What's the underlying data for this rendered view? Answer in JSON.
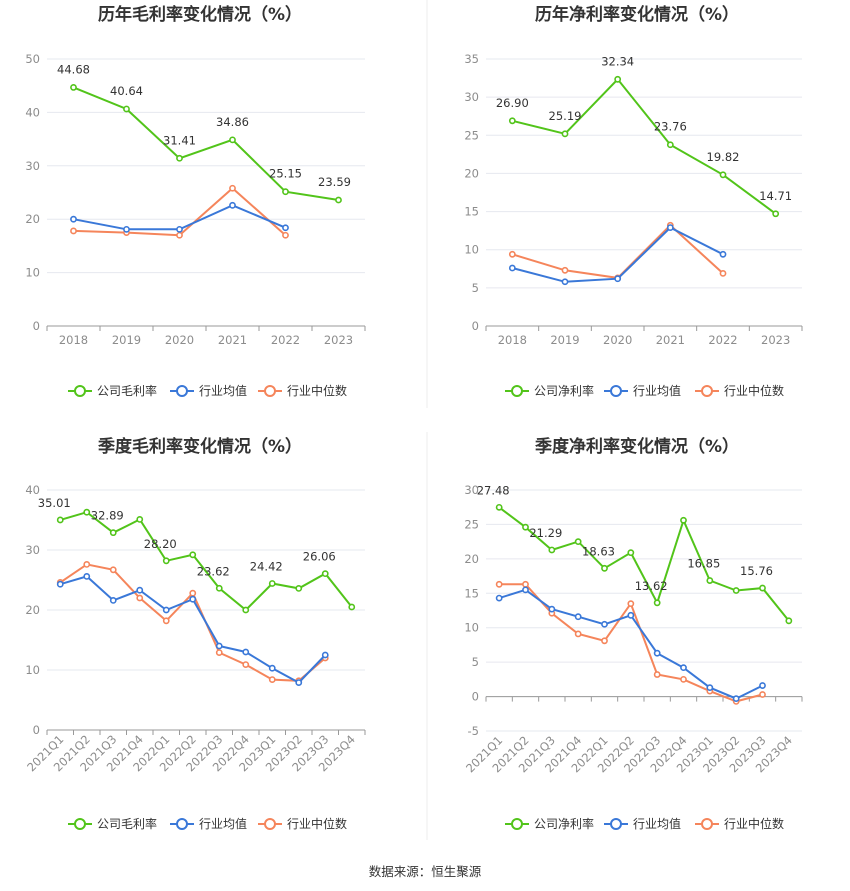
{
  "colors": {
    "company": "#52c41a",
    "industry_avg": "#3a78d8",
    "industry_median": "#f5855b",
    "grid": "#e6e8ef",
    "axis": "#999999"
  },
  "legend": {
    "company_gross": "公司毛利率",
    "company_net": "公司净利率",
    "industry_avg": "行业均值",
    "industry_median": "行业中位数"
  },
  "source": "数据来源：恒生聚源",
  "chart_data": [
    {
      "type": "line",
      "title": "历年毛利率变化情况（%）",
      "categories": [
        "2018",
        "2019",
        "2020",
        "2021",
        "2022",
        "2023"
      ],
      "ylim": [
        0,
        50
      ],
      "yticks": [
        0,
        10,
        20,
        30,
        40,
        50
      ],
      "legend_placement": "bottom",
      "series": [
        {
          "name": "公司毛利率",
          "values": [
            44.68,
            40.64,
            31.41,
            34.86,
            25.15,
            23.59
          ],
          "labels": [
            "44.68",
            "40.64",
            "31.41",
            "34.86",
            "25.15",
            "23.59"
          ]
        },
        {
          "name": "行业均值",
          "values": [
            20.0,
            18.1,
            18.1,
            22.6,
            18.4,
            null
          ]
        },
        {
          "name": "行业中位数",
          "values": [
            17.8,
            17.5,
            17.0,
            25.8,
            17.0,
            null
          ]
        }
      ]
    },
    {
      "type": "line",
      "title": "历年净利率变化情况（%）",
      "categories": [
        "2018",
        "2019",
        "2020",
        "2021",
        "2022",
        "2023"
      ],
      "ylim": [
        0,
        35
      ],
      "yticks": [
        0,
        5,
        10,
        15,
        20,
        25,
        30,
        35
      ],
      "legend_placement": "bottom",
      "series": [
        {
          "name": "公司净利率",
          "values": [
            26.9,
            25.19,
            32.34,
            23.76,
            19.82,
            14.71
          ],
          "labels": [
            "26.90",
            "25.19",
            "32.34",
            "23.76",
            "19.82",
            "14.71"
          ]
        },
        {
          "name": "行业均值",
          "values": [
            7.6,
            5.8,
            6.2,
            12.9,
            9.4,
            null
          ]
        },
        {
          "name": "行业中位数",
          "values": [
            9.4,
            7.3,
            6.3,
            13.2,
            6.9,
            null
          ]
        }
      ]
    },
    {
      "type": "line",
      "title": "季度毛利率变化情况（%）",
      "categories": [
        "2021Q1",
        "2021Q2",
        "2021Q3",
        "2021Q4",
        "2022Q1",
        "2022Q2",
        "2022Q3",
        "2022Q4",
        "2023Q1",
        "2023Q2",
        "2023Q3",
        "2023Q4"
      ],
      "ylim": [
        0,
        40
      ],
      "yticks": [
        0,
        10,
        20,
        30,
        40
      ],
      "legend_placement": "bottom",
      "series": [
        {
          "name": "公司毛利率",
          "values": [
            35.01,
            36.3,
            32.89,
            35.1,
            28.2,
            29.2,
            23.62,
            20.0,
            24.42,
            23.6,
            26.06,
            20.5
          ],
          "labels": [
            "35.01",
            "",
            "32.89",
            "",
            "28.20",
            "",
            "23.62",
            "",
            "24.42",
            "",
            "26.06",
            ""
          ]
        },
        {
          "name": "行业均值",
          "values": [
            24.3,
            25.6,
            21.6,
            23.3,
            20.0,
            21.8,
            14.0,
            13.0,
            10.3,
            7.9,
            12.5,
            null
          ]
        },
        {
          "name": "行业中位数",
          "values": [
            24.6,
            27.6,
            26.7,
            22.0,
            18.2,
            22.8,
            12.9,
            10.9,
            8.4,
            8.2,
            12.0,
            null
          ]
        }
      ]
    },
    {
      "type": "line",
      "title": "季度净利率变化情况（%）",
      "categories": [
        "2021Q1",
        "2021Q2",
        "2021Q3",
        "2021Q4",
        "2022Q1",
        "2022Q2",
        "2022Q3",
        "2022Q4",
        "2023Q1",
        "2023Q2",
        "2023Q3",
        "2023Q4"
      ],
      "ylim": [
        -5,
        30
      ],
      "yticks": [
        -5,
        0,
        5,
        10,
        15,
        20,
        25,
        30
      ],
      "legend_placement": "bottom",
      "series": [
        {
          "name": "公司净利率",
          "values": [
            27.48,
            24.6,
            21.29,
            22.5,
            18.63,
            20.9,
            13.62,
            25.6,
            16.85,
            15.4,
            15.76,
            11.0
          ],
          "labels": [
            "27.48",
            "",
            "21.29",
            "",
            "18.63",
            "",
            "13.62",
            "",
            "16.85",
            "",
            "15.76",
            ""
          ]
        },
        {
          "name": "行业均值",
          "values": [
            14.3,
            15.5,
            12.7,
            11.6,
            10.5,
            11.8,
            6.3,
            4.2,
            1.3,
            -0.3,
            1.6,
            null
          ]
        },
        {
          "name": "行业中位数",
          "values": [
            16.3,
            16.3,
            12.1,
            9.1,
            8.1,
            13.5,
            3.2,
            2.5,
            0.8,
            -0.7,
            0.3,
            null
          ]
        }
      ]
    }
  ]
}
